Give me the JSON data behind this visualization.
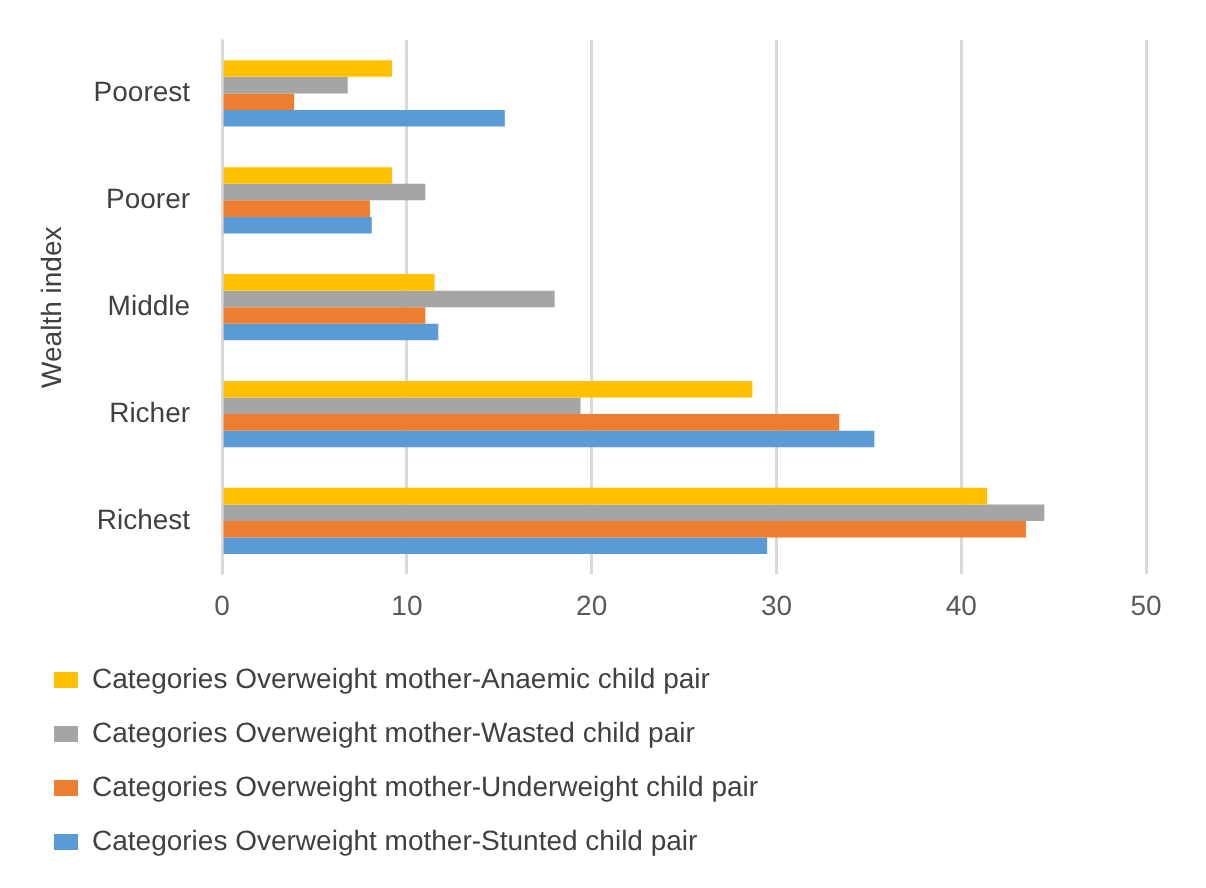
{
  "chart_data": {
    "type": "bar",
    "orientation": "horizontal",
    "ylabel": "Wealth index",
    "categories": [
      "Poorest",
      "Poorer",
      "Middle",
      "Richer",
      "Richest"
    ],
    "series": [
      {
        "name": "Categories Overweight mother-Anaemic child pair",
        "color": "#ffc000",
        "values": [
          9.2,
          9.2,
          11.5,
          28.7,
          41.4
        ]
      },
      {
        "name": "Categories Overweight mother-Wasted child pair",
        "color": "#a5a5a5",
        "values": [
          6.8,
          11.0,
          18.0,
          19.4,
          44.5
        ]
      },
      {
        "name": "Categories Overweight mother-Underweight child pair",
        "color": "#ed7d31",
        "values": [
          3.9,
          8.0,
          11.0,
          33.4,
          43.5
        ]
      },
      {
        "name": "Categories Overweight mother-Stunted child pair",
        "color": "#5b9bd5",
        "values": [
          15.3,
          8.1,
          11.7,
          35.3,
          29.5
        ]
      }
    ],
    "xlim": [
      0,
      50
    ],
    "xticks": [
      0,
      10,
      20,
      30,
      40,
      50
    ],
    "grid": "x",
    "legend": "bottom"
  }
}
